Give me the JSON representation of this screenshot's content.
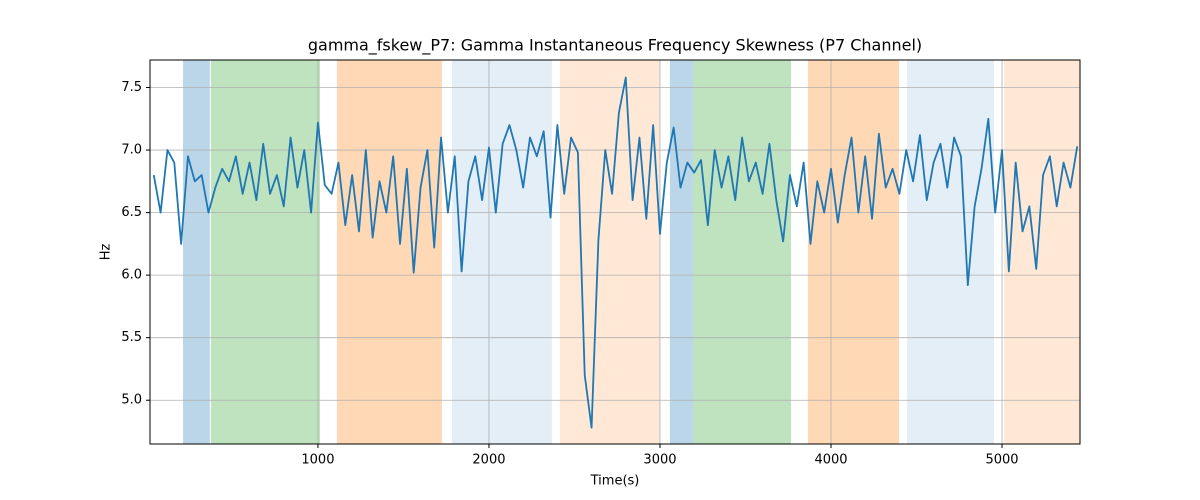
{
  "chart_data": {
    "type": "line",
    "title": "gamma_fskew_P7: Gamma Instantaneous Frequency Skewness (P7 Channel)",
    "x_label": "Time(s)",
    "y_label": "Hz",
    "color": "#1f77b4",
    "x": [
      40,
      80,
      120,
      160,
      200,
      240,
      280,
      320,
      360,
      400,
      440,
      480,
      520,
      560,
      600,
      640,
      680,
      720,
      760,
      800,
      840,
      880,
      920,
      960,
      1000,
      1040,
      1080,
      1120,
      1160,
      1200,
      1240,
      1280,
      1320,
      1360,
      1400,
      1440,
      1480,
      1520,
      1560,
      1600,
      1640,
      1680,
      1720,
      1760,
      1800,
      1840,
      1880,
      1920,
      1960,
      2000,
      2040,
      2080,
      2120,
      2160,
      2200,
      2240,
      2280,
      2320,
      2360,
      2400,
      2440,
      2480,
      2520,
      2560,
      2600,
      2640,
      2680,
      2720,
      2760,
      2800,
      2840,
      2880,
      2920,
      2960,
      3000,
      3040,
      3080,
      3120,
      3160,
      3200,
      3240,
      3280,
      3320,
      3360,
      3400,
      3440,
      3480,
      3520,
      3560,
      3600,
      3640,
      3680,
      3720,
      3760,
      3800,
      3840,
      3880,
      3920,
      3960,
      4000,
      4040,
      4080,
      4120,
      4160,
      4200,
      4240,
      4280,
      4320,
      4360,
      4400,
      4440,
      4480,
      4520,
      4560,
      4600,
      4640,
      4680,
      4720,
      4760,
      4800,
      4840,
      4880,
      4920,
      4960,
      5000,
      5040,
      5080,
      5120,
      5160,
      5200,
      5240,
      5280,
      5320,
      5360,
      5400,
      5440
    ],
    "values": [
      6.8,
      6.5,
      7.0,
      6.9,
      6.25,
      6.95,
      6.75,
      6.8,
      6.5,
      6.7,
      6.85,
      6.75,
      6.95,
      6.65,
      6.9,
      6.6,
      7.05,
      6.65,
      6.8,
      6.55,
      7.1,
      6.7,
      7.0,
      6.5,
      7.22,
      6.72,
      6.65,
      6.9,
      6.4,
      6.8,
      6.35,
      7.0,
      6.3,
      6.75,
      6.5,
      6.95,
      6.25,
      6.85,
      6.02,
      6.7,
      7.0,
      6.22,
      7.1,
      6.5,
      6.95,
      6.03,
      6.75,
      6.95,
      6.6,
      7.02,
      6.5,
      7.05,
      7.2,
      7.0,
      6.7,
      7.1,
      6.95,
      7.15,
      6.46,
      7.2,
      6.65,
      7.1,
      6.98,
      5.2,
      4.78,
      6.28,
      7.0,
      6.65,
      7.3,
      7.58,
      6.6,
      7.1,
      6.45,
      7.2,
      6.33,
      6.9,
      7.18,
      6.7,
      6.9,
      6.82,
      6.92,
      6.4,
      7.0,
      6.7,
      6.95,
      6.6,
      7.1,
      6.75,
      6.9,
      6.65,
      7.05,
      6.6,
      6.27,
      6.8,
      6.55,
      6.9,
      6.25,
      6.75,
      6.5,
      6.85,
      6.42,
      6.8,
      7.1,
      6.5,
      6.95,
      6.45,
      7.13,
      6.7,
      6.85,
      6.65,
      7.0,
      6.75,
      7.12,
      6.6,
      6.9,
      7.05,
      6.7,
      7.1,
      6.95,
      5.92,
      6.55,
      6.85,
      7.25,
      6.5,
      7.0,
      6.03,
      6.9,
      6.35,
      6.55,
      6.05,
      6.8,
      6.95,
      6.55,
      6.9,
      6.7,
      7.03
    ],
    "spans": [
      {
        "start": 211,
        "end": 368,
        "color": "#1f77b4",
        "alpha": 0.3
      },
      {
        "start": 374,
        "end": 1012,
        "color": "#2ca02c",
        "alpha": 0.3
      },
      {
        "start": 1111,
        "end": 1725,
        "color": "#ff7f0e",
        "alpha": 0.3
      },
      {
        "start": 1784,
        "end": 2368,
        "color": "#1f77b4",
        "alpha": 0.12
      },
      {
        "start": 2415,
        "end": 3000,
        "color": "#ff7f0e",
        "alpha": 0.17
      },
      {
        "start": 3058,
        "end": 3193,
        "color": "#1f77b4",
        "alpha": 0.3
      },
      {
        "start": 3193,
        "end": 3766,
        "color": "#2ca02c",
        "alpha": 0.3
      },
      {
        "start": 3865,
        "end": 4398,
        "color": "#ff7f0e",
        "alpha": 0.3
      },
      {
        "start": 4444,
        "end": 4953,
        "color": "#1f77b4",
        "alpha": 0.12
      },
      {
        "start": 5012,
        "end": 5456,
        "color": "#ff7f0e",
        "alpha": 0.17
      }
    ],
    "xlim": [
      18,
      5456
    ],
    "ylim": [
      4.65,
      7.72
    ],
    "xticks": [
      1000,
      2000,
      3000,
      4000,
      5000
    ],
    "yticks": [
      {
        "value": 5,
        "label": "5.0"
      },
      {
        "value": 5.5,
        "label": "5.5"
      },
      {
        "value": 6,
        "label": "6.0"
      },
      {
        "value": 6.5,
        "label": "6.5"
      },
      {
        "value": 7,
        "label": "7.0"
      },
      {
        "value": 7.5,
        "label": "7.5"
      }
    ],
    "grid": true
  }
}
